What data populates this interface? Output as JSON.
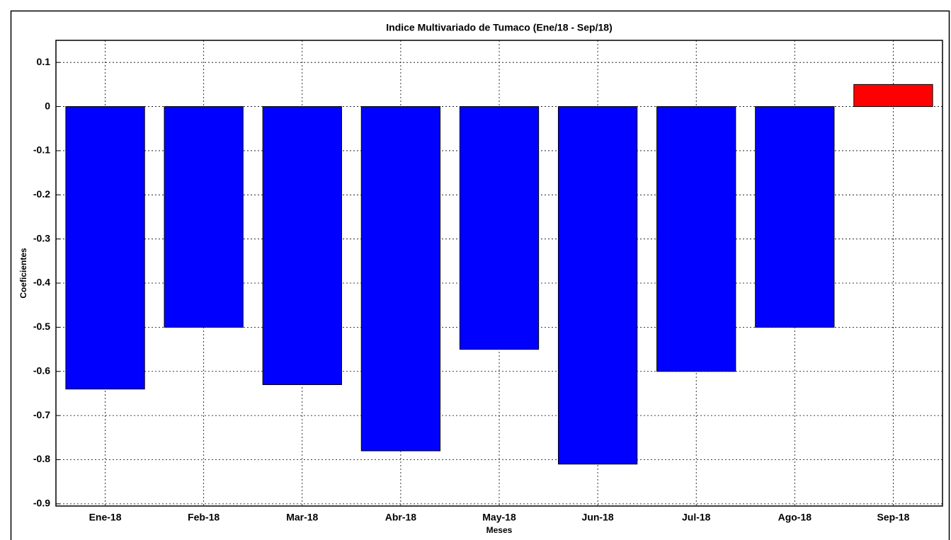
{
  "chart_data": {
    "type": "bar",
    "title": "Indice Multivariado de Tumaco (Ene/18 - Sep/18)",
    "x_label": "Meses",
    "y_label": "Coeficientes",
    "categories": [
      "Ene-18",
      "Feb-18",
      "Mar-18",
      "Abr-18",
      "May-18",
      "Jun-18",
      "Jul-18",
      "Ago-18",
      "Sep-18"
    ],
    "values": [
      -0.64,
      -0.5,
      -0.63,
      -0.78,
      -0.55,
      -0.81,
      -0.6,
      -0.5,
      0.05
    ],
    "colors": [
      "#0000ff",
      "#0000ff",
      "#0000ff",
      "#0000ff",
      "#0000ff",
      "#0000ff",
      "#0000ff",
      "#0000ff",
      "#ff0000"
    ],
    "ylim": [
      -0.905,
      0.15
    ],
    "yticks": [
      0.1,
      0,
      -0.1,
      -0.2,
      -0.3,
      -0.4,
      -0.5,
      -0.6,
      -0.7,
      -0.8,
      -0.9
    ],
    "grid": true
  }
}
